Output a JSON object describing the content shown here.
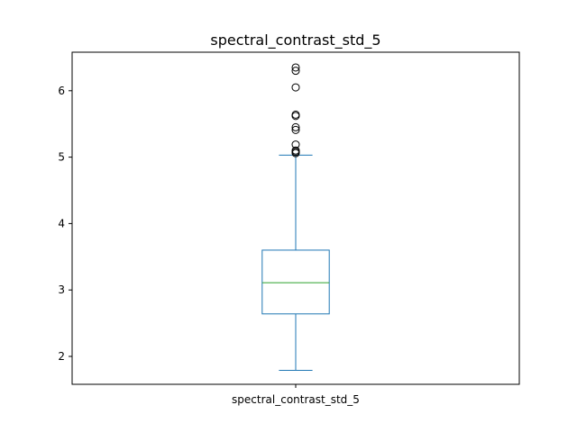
{
  "chart_data": {
    "type": "box",
    "title": "spectral_contrast_std_5",
    "categories": [
      "spectral_contrast_std_5"
    ],
    "xlabel": "",
    "ylabel": "",
    "ylim": [
      1.58,
      6.58
    ],
    "yticks": [
      2,
      3,
      4,
      5,
      6
    ],
    "grid": false,
    "series": [
      {
        "whisker_low": 1.79,
        "q1": 2.64,
        "median": 3.11,
        "q3": 3.6,
        "whisker_high": 5.03,
        "outliers": [
          5.06,
          5.08,
          5.1,
          5.19,
          5.41,
          5.45,
          5.62,
          5.64,
          6.05,
          6.3,
          6.35
        ]
      }
    ],
    "colors": {
      "box": "#1f77b4",
      "median": "#2ca02c",
      "outlier": "#000000",
      "axes": "#000000"
    }
  }
}
